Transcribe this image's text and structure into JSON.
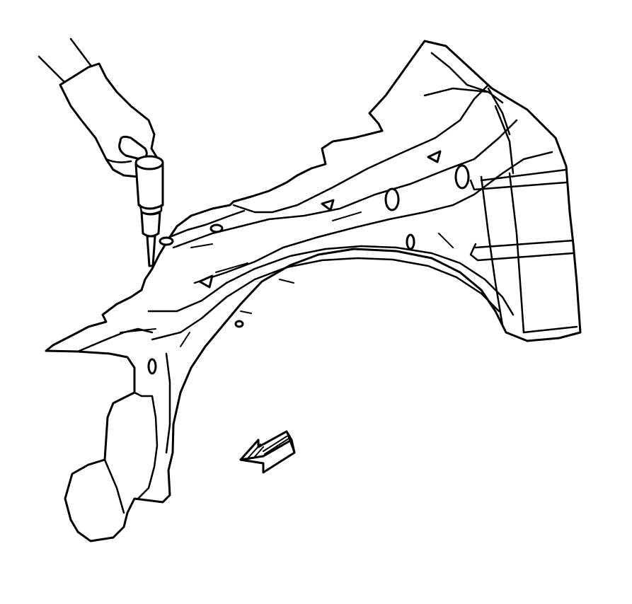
{
  "figure": {
    "subject": "inner-fender-panel-drill-procedure",
    "line_color": "#000000",
    "background_color": "#ffffff",
    "icons": [
      "hand-icon",
      "drill-icon",
      "direction-arrow-icon"
    ]
  }
}
